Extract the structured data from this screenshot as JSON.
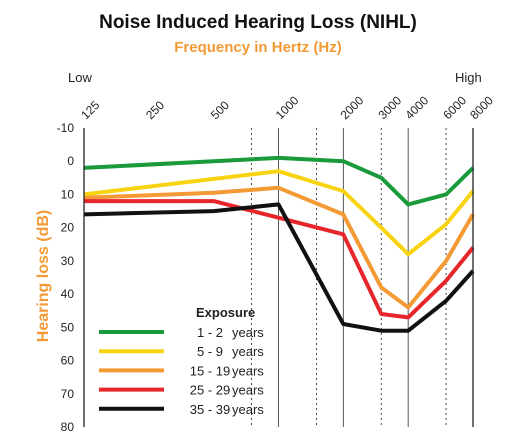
{
  "chart_data": {
    "type": "line",
    "title": "Noise Induced Hearing Loss (NIHL)",
    "subtitle": "Frequency in Hertz (Hz)",
    "ylabel": "Hearing loss (dB)",
    "x_low_label": "Low",
    "x_high_label": "High",
    "x": [
      "125",
      "250",
      "500",
      "1000",
      "2000",
      "3000",
      "4000",
      "6000",
      "8000"
    ],
    "y_ticks": [
      -10,
      0,
      10,
      20,
      30,
      40,
      50,
      60,
      70,
      80
    ],
    "ylim": [
      -10,
      80
    ],
    "y_inverted": true,
    "grid": "vertical dotted at 750, 1500, 3000, 6000 Hz; solid at 1000, 2000, 4000, 8000 Hz",
    "legend_title": "Exposure",
    "legend_placement": "bottom-left",
    "series": [
      {
        "name": "1 - 2",
        "unit": "years",
        "color": "#1a9a3a",
        "points": [
          [
            125,
            2
          ],
          [
            1000,
            -1
          ],
          [
            2000,
            0
          ],
          [
            3000,
            5
          ],
          [
            4000,
            13
          ],
          [
            6000,
            10
          ],
          [
            8000,
            2
          ]
        ]
      },
      {
        "name": "5 - 9",
        "unit": "years",
        "color": "#f7d312",
        "points": [
          [
            125,
            10
          ],
          [
            1000,
            3
          ],
          [
            2000,
            9
          ],
          [
            3000,
            20
          ],
          [
            4000,
            28
          ],
          [
            6000,
            19
          ],
          [
            8000,
            9
          ]
        ]
      },
      {
        "name": "15 - 19",
        "unit": "years",
        "color": "#f39a35",
        "points": [
          [
            125,
            11
          ],
          [
            500,
            9.5
          ],
          [
            1000,
            8
          ],
          [
            2000,
            16
          ],
          [
            3000,
            38
          ],
          [
            4000,
            44
          ],
          [
            6000,
            30
          ],
          [
            8000,
            16
          ]
        ]
      },
      {
        "name": "25 - 29",
        "unit": "years",
        "color": "#e7262b",
        "points": [
          [
            125,
            12
          ],
          [
            500,
            12
          ],
          [
            1000,
            17
          ],
          [
            2000,
            22
          ],
          [
            3000,
            46
          ],
          [
            4000,
            47
          ],
          [
            6000,
            36
          ],
          [
            8000,
            26
          ]
        ]
      },
      {
        "name": "35 - 39",
        "unit": "years",
        "color": "#111111",
        "points": [
          [
            125,
            16
          ],
          [
            500,
            15
          ],
          [
            1000,
            13
          ],
          [
            2000,
            49
          ],
          [
            3000,
            51
          ],
          [
            4000,
            51
          ],
          [
            6000,
            42
          ],
          [
            8000,
            33
          ]
        ]
      }
    ]
  },
  "colors": {
    "accent": "#f39a35",
    "axis": "#222222"
  }
}
